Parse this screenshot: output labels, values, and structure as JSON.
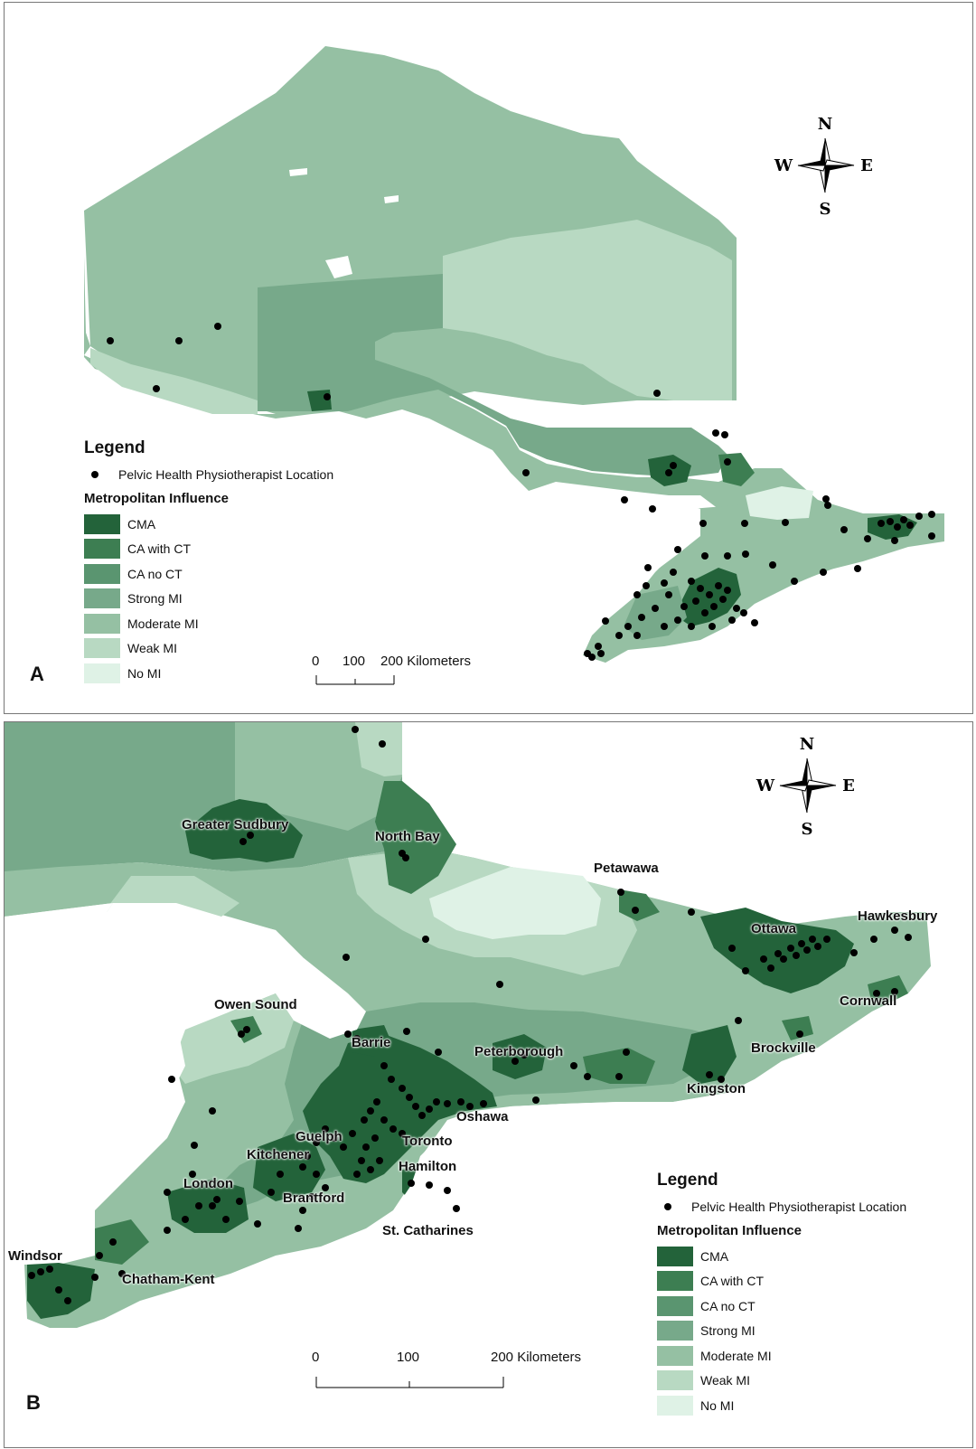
{
  "colors": {
    "cma": "#23633a",
    "ca_with_ct": "#3d7e52",
    "ca_no_ct": "#5a9570",
    "strong_mi": "#77a98a",
    "moderate_mi": "#95c0a3",
    "weak_mi": "#b8d9c2",
    "no_mi": "#dff2e6",
    "dot": "#000000",
    "water": "#ffffff"
  },
  "compass": {
    "n": "N",
    "s": "S",
    "e": "E",
    "w": "W"
  },
  "legend": {
    "title": "Legend",
    "point_label": "Pelvic Health Physiotherapist Location",
    "subtitle": "Metropolitan Influence",
    "items": [
      {
        "label": "CMA",
        "color": "#23633a"
      },
      {
        "label": "CA with CT",
        "color": "#3d7e52"
      },
      {
        "label": "CA no CT",
        "color": "#5a9570"
      },
      {
        "label": "Strong MI",
        "color": "#77a98a"
      },
      {
        "label": "Moderate MI",
        "color": "#95c0a3"
      },
      {
        "label": "Weak MI",
        "color": "#b8d9c2"
      },
      {
        "label": "No MI",
        "color": "#dff2e6"
      }
    ]
  },
  "panel_a": {
    "letter": "A",
    "scale": {
      "ticks": [
        "0",
        "100",
        "200 Kilometers"
      ]
    }
  },
  "panel_b": {
    "letter": "B",
    "scale": {
      "ticks": [
        "0",
        "100",
        "200 Kilometers"
      ]
    },
    "cities": [
      "Greater Sudbury",
      "North Bay",
      "Petawawa",
      "Ottawa",
      "Hawkesbury",
      "Cornwall",
      "Owen Sound",
      "Barrie",
      "Peterborough",
      "Brockville",
      "Kingston",
      "Oshawa",
      "Guelph",
      "Toronto",
      "Kitchener",
      "Hamilton",
      "London",
      "Brantford",
      "St. Catharines",
      "Windsor",
      "Chatham-Kent"
    ]
  }
}
